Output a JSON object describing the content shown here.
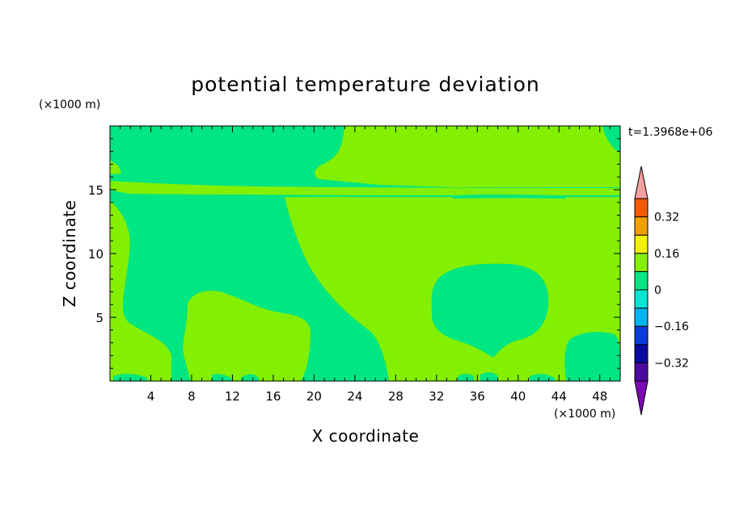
{
  "chart_data": {
    "type": "heatmap",
    "title": "potential temperature deviation",
    "xlabel": "X coordinate",
    "ylabel": "Z coordinate",
    "x_unit": "(×1000 m)",
    "y_unit": "(×1000 m)",
    "time_label": "t=1.3968e+06",
    "xlim": [
      0,
      50
    ],
    "ylim": [
      0,
      20
    ],
    "x_ticks": [
      4,
      8,
      12,
      16,
      20,
      24,
      28,
      32,
      36,
      40,
      44,
      48
    ],
    "y_ticks": [
      5,
      10,
      15
    ],
    "colorbar": {
      "levels": [
        -0.4,
        -0.32,
        -0.24,
        -0.16,
        -0.08,
        0,
        0.08,
        0.16,
        0.24,
        0.32,
        0.4
      ],
      "labels": [
        "0.32",
        "0.16",
        "0",
        "−0.16",
        "−0.32"
      ],
      "label_values": [
        0.32,
        0.16,
        0,
        -0.16,
        -0.32
      ],
      "colors": [
        "#4b0a9c",
        "#0a0aa0",
        "#0a3cdc",
        "#00b4f0",
        "#00e6d2",
        "#00e682",
        "#82f000",
        "#f0f000",
        "#f0a000",
        "#f05a00",
        "#f01e1e"
      ],
      "under_color": "#7a0ab4",
      "over_color": "#f5a0a0"
    },
    "field": {
      "background_class": "-0.08 to 0",
      "regions": [
        {
          "name": "upper-left",
          "class": "0 to 0.08",
          "center": [
            1.5,
            16.7
          ]
        },
        {
          "name": "upper-right",
          "class": "0 to 0.08",
          "center": [
            35,
            17.5
          ]
        },
        {
          "name": "band-15km",
          "class": "0 to 0.08",
          "center": [
            25,
            14.9
          ]
        },
        {
          "name": "left-column",
          "class": "0 to 0.08",
          "center": [
            3,
            4
          ]
        },
        {
          "name": "lower-left-blob",
          "class": "0 to 0.08",
          "center": [
            13,
            3
          ]
        },
        {
          "name": "central-right-area",
          "class": "0 to 0.08",
          "center": [
            36,
            8
          ]
        },
        {
          "name": "hole-near-x37",
          "class": "-0.08 to 0",
          "center": [
            37.5,
            6
          ]
        },
        {
          "name": "hole-near-x47",
          "class": "-0.08 to 0",
          "center": [
            47,
            2
          ]
        }
      ]
    }
  }
}
